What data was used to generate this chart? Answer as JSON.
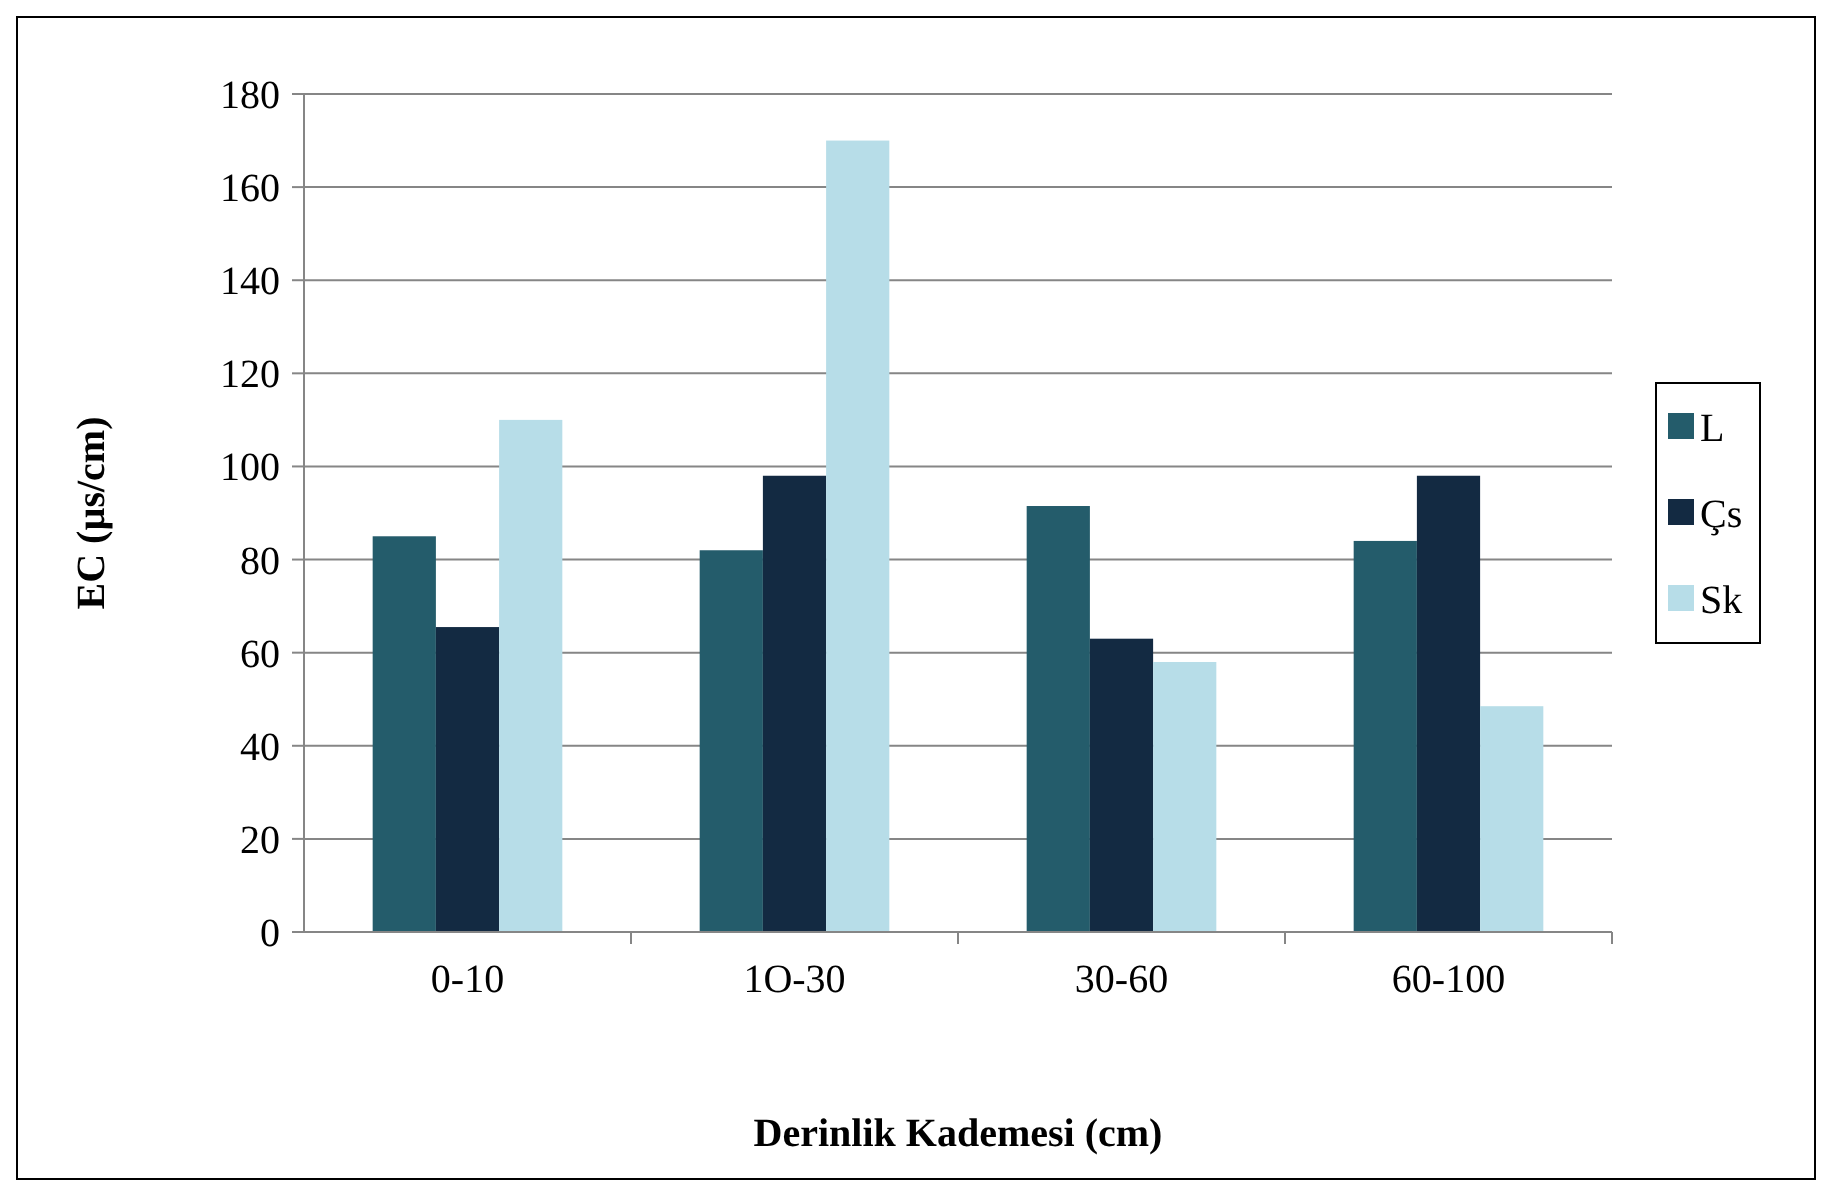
{
  "chart_data": {
    "type": "bar",
    "xlabel": "Derinlik Kademesi (cm)",
    "ylabel": "EC (µs/cm)",
    "categories": [
      "0-10",
      "1O-30",
      "30-60",
      "60-100"
    ],
    "series": [
      {
        "name": "L",
        "color": "#245c6b",
        "values": [
          85,
          82,
          91.5,
          84
        ]
      },
      {
        "name": "Çs",
        "color": "#132a42",
        "values": [
          65.5,
          98,
          63,
          98
        ]
      },
      {
        "name": "Sk",
        "color": "#b7dde8",
        "values": [
          110,
          170,
          58,
          48.5
        ]
      }
    ],
    "ylim": [
      0,
      180
    ],
    "yticks": [
      0,
      20,
      40,
      60,
      80,
      100,
      120,
      140,
      160,
      180
    ],
    "grid": "y",
    "legend": "right"
  }
}
